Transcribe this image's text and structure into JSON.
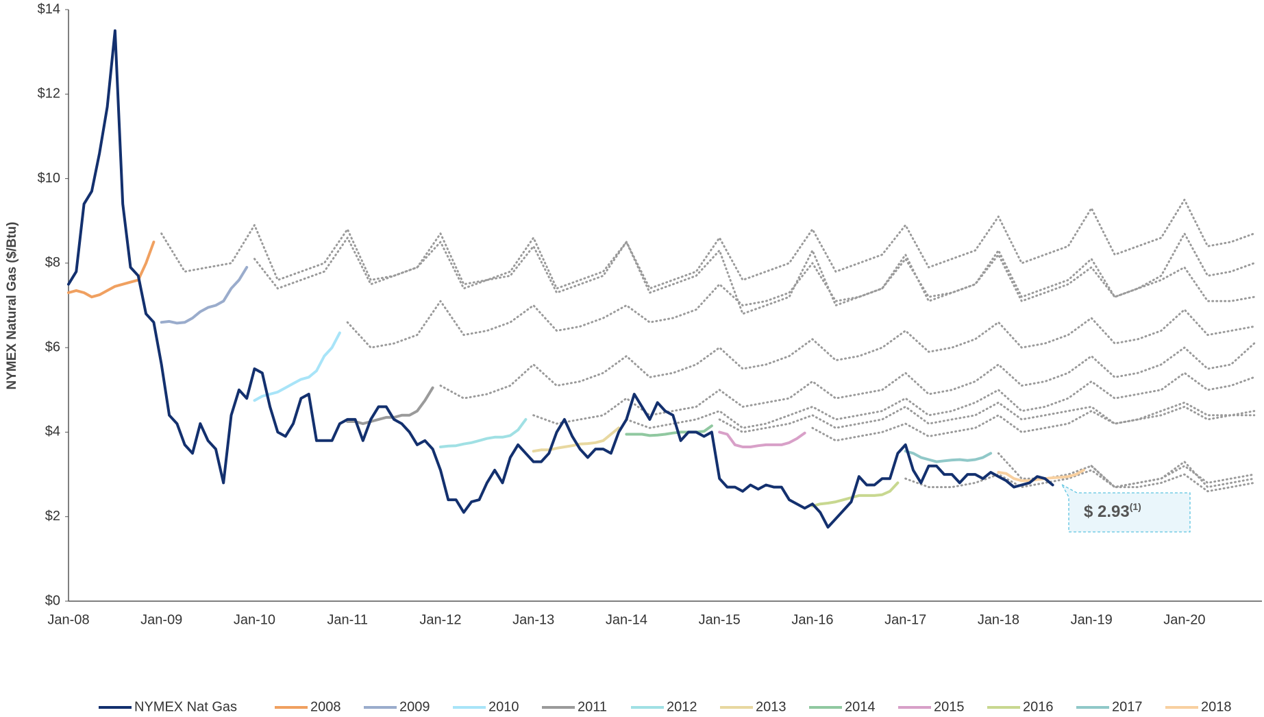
{
  "chart_data": {
    "type": "line",
    "y_label": "NYMEX Natural Gas ($/Btu)",
    "xlim": [
      "Jan-08",
      "Nov-20"
    ],
    "xticks": [
      "Jan-08",
      "Jan-09",
      "Jan-10",
      "Jan-11",
      "Jan-12",
      "Jan-13",
      "Jan-14",
      "Jan-15",
      "Jan-16",
      "Jan-17",
      "Jan-18",
      "Jan-19",
      "Jan-20"
    ],
    "ylim": [
      0,
      14
    ],
    "yticks": [
      {
        "value": 0,
        "label": "$0"
      },
      {
        "value": 2,
        "label": "$2"
      },
      {
        "value": 4,
        "label": "$4"
      },
      {
        "value": 6,
        "label": "$6"
      },
      {
        "value": 8,
        "label": "$8"
      },
      {
        "value": 10,
        "label": "$10"
      },
      {
        "value": 12,
        "label": "$12"
      },
      {
        "value": 14,
        "label": "$14"
      }
    ],
    "forward_color": "#9a9a9a",
    "forward_step_months": 3,
    "annotation": {
      "text": "$ 2.93",
      "note": "(1)"
    },
    "series": [
      {
        "name": "NYMEX Nat Gas",
        "color": "#13306e",
        "start": "Jan-08",
        "values": [
          7.5,
          7.8,
          9.4,
          9.7,
          10.6,
          11.7,
          13.5,
          9.4,
          7.9,
          7.7,
          6.8,
          6.6,
          5.6,
          4.4,
          4.2,
          3.7,
          3.5,
          4.2,
          3.8,
          3.6,
          2.8,
          4.4,
          5.0,
          4.8,
          5.5,
          5.4,
          4.6,
          4.0,
          3.9,
          4.2,
          4.8,
          4.9,
          3.8,
          3.8,
          3.8,
          4.2,
          4.3,
          4.3,
          3.8,
          4.3,
          4.6,
          4.6,
          4.3,
          4.2,
          4.0,
          3.7,
          3.8,
          3.6,
          3.1,
          2.4,
          2.4,
          2.1,
          2.35,
          2.4,
          2.8,
          3.1,
          2.8,
          3.4,
          3.7,
          3.5,
          3.3,
          3.3,
          3.5,
          4.0,
          4.3,
          3.9,
          3.6,
          3.4,
          3.6,
          3.6,
          3.5,
          4.0,
          4.3,
          4.9,
          4.6,
          4.3,
          4.7,
          4.5,
          4.4,
          3.8,
          4.0,
          4.0,
          3.9,
          4.0,
          2.9,
          2.7,
          2.7,
          2.6,
          2.75,
          2.65,
          2.75,
          2.7,
          2.7,
          2.4,
          2.3,
          2.2,
          2.3,
          2.1,
          1.75,
          1.95,
          2.15,
          2.35,
          2.95,
          2.75,
          2.75,
          2.9,
          2.9,
          3.5,
          3.7,
          3.1,
          2.8,
          3.2,
          3.2,
          3.0,
          3.0,
          2.8,
          3.0,
          3.0,
          2.9,
          3.05,
          2.95,
          2.85,
          2.7,
          2.75,
          2.8,
          2.95,
          2.9,
          2.75
        ]
      },
      {
        "name": "2008",
        "color": "#f0a060",
        "start": "Jan-08",
        "values": [
          7.3,
          7.35,
          7.3,
          7.2,
          7.25,
          7.35,
          7.45,
          7.5,
          7.55,
          7.6,
          8.0,
          8.5
        ],
        "forward_start": "Jan-09",
        "forward": [
          8.7,
          7.8,
          7.9,
          8.0,
          8.9,
          7.6,
          7.8,
          8.0,
          8.8,
          7.6,
          7.7,
          7.9,
          8.7,
          7.5,
          7.6,
          7.8,
          8.6,
          7.4,
          7.6,
          7.8,
          8.5,
          7.4,
          7.6,
          7.8,
          8.6,
          7.6,
          7.8,
          8.0,
          8.8,
          7.8,
          8.0,
          8.2,
          8.9,
          7.9,
          8.1,
          8.3,
          9.1,
          8.0,
          8.2,
          8.4,
          9.3,
          8.2,
          8.4,
          8.6,
          9.5,
          8.4,
          8.5,
          8.7
        ]
      },
      {
        "name": "2009",
        "color": "#9aaccc",
        "start": "Jan-09",
        "values": [
          6.6,
          6.62,
          6.58,
          6.6,
          6.7,
          6.85,
          6.95,
          7.0,
          7.1,
          7.4,
          7.6,
          7.9
        ],
        "forward_start": "Jan-10",
        "forward": [
          8.1,
          7.4,
          7.6,
          7.8,
          8.6,
          7.5,
          7.7,
          7.9,
          8.5,
          7.4,
          7.6,
          7.7,
          8.4,
          7.3,
          7.5,
          7.7,
          8.5,
          7.3,
          7.5,
          7.7,
          8.3,
          6.8,
          7.0,
          7.2,
          8.3,
          7.0,
          7.2,
          7.4,
          8.2,
          7.1,
          7.3,
          7.5,
          8.3,
          7.2,
          7.4,
          7.6,
          8.1,
          7.2,
          7.4,
          7.7,
          8.7,
          7.7,
          7.8,
          8.0
        ]
      },
      {
        "name": "2010",
        "color": "#a8e4f8",
        "start": "Jan-10",
        "values": [
          4.75,
          4.85,
          4.9,
          4.95,
          5.05,
          5.15,
          5.25,
          5.3,
          5.45,
          5.8,
          6.0,
          6.35
        ],
        "forward_start": "Jan-11",
        "forward": [
          6.6,
          6.0,
          6.1,
          6.3,
          7.1,
          6.3,
          6.4,
          6.6,
          7.0,
          6.4,
          6.5,
          6.7,
          7.0,
          6.6,
          6.7,
          6.9,
          7.5,
          7.0,
          7.1,
          7.3,
          8.0,
          7.1,
          7.2,
          7.4,
          8.1,
          7.2,
          7.3,
          7.5,
          8.2,
          7.1,
          7.3,
          7.5,
          7.9,
          7.2,
          7.4,
          7.6,
          7.9,
          7.1,
          7.1,
          7.2
        ]
      },
      {
        "name": "2011",
        "color": "#9a9a9a",
        "start": "Jan-11",
        "values": [
          4.25,
          4.25,
          4.2,
          4.25,
          4.3,
          4.35,
          4.35,
          4.4,
          4.4,
          4.5,
          4.75,
          5.05
        ],
        "forward_start": "Jan-12",
        "forward": [
          5.1,
          4.8,
          4.9,
          5.1,
          5.6,
          5.1,
          5.2,
          5.4,
          5.8,
          5.3,
          5.4,
          5.6,
          6.0,
          5.5,
          5.6,
          5.8,
          6.2,
          5.7,
          5.8,
          6.0,
          6.4,
          5.9,
          6.0,
          6.2,
          6.6,
          6.0,
          6.1,
          6.3,
          6.7,
          6.1,
          6.2,
          6.4,
          6.9,
          6.3,
          6.4,
          6.5
        ]
      },
      {
        "name": "2012",
        "color": "#a0e0e4",
        "start": "Jan-12",
        "values": [
          3.65,
          3.67,
          3.68,
          3.72,
          3.75,
          3.8,
          3.85,
          3.88,
          3.88,
          3.92,
          4.05,
          4.3
        ],
        "forward_start": "Jan-13",
        "forward": [
          4.4,
          4.2,
          4.3,
          4.4,
          4.8,
          4.4,
          4.5,
          4.6,
          5.0,
          4.6,
          4.7,
          4.8,
          5.2,
          4.8,
          4.9,
          5.0,
          5.4,
          4.9,
          5.0,
          5.2,
          5.6,
          5.1,
          5.2,
          5.4,
          5.8,
          5.3,
          5.4,
          5.6,
          6.0,
          5.5,
          5.6,
          6.1
        ]
      },
      {
        "name": "2013",
        "color": "#e8d8a0",
        "start": "Jan-13",
        "values": [
          3.55,
          3.58,
          3.58,
          3.62,
          3.65,
          3.68,
          3.72,
          3.73,
          3.75,
          3.8,
          3.95,
          4.1
        ],
        "forward_start": "Jan-14",
        "forward": [
          4.3,
          4.1,
          4.2,
          4.3,
          4.5,
          4.1,
          4.2,
          4.4,
          4.6,
          4.3,
          4.4,
          4.5,
          4.8,
          4.4,
          4.5,
          4.7,
          5.0,
          4.5,
          4.6,
          4.8,
          5.2,
          4.8,
          4.9,
          5.0,
          5.4,
          5.0,
          5.1,
          5.3
        ]
      },
      {
        "name": "2014",
        "color": "#90c8a0",
        "start": "Jan-14",
        "values": [
          3.95,
          3.95,
          3.95,
          3.92,
          3.93,
          3.95,
          3.98,
          4.0,
          4.0,
          4.0,
          4.02,
          4.15
        ],
        "forward_start": "Jan-15",
        "forward": [
          4.3,
          4.0,
          4.1,
          4.2,
          4.4,
          4.1,
          4.2,
          4.3,
          4.6,
          4.2,
          4.3,
          4.4,
          4.7,
          4.3,
          4.4,
          4.5,
          4.6,
          4.2,
          4.3,
          4.5,
          4.7,
          4.4,
          4.4,
          4.5
        ]
      },
      {
        "name": "2015",
        "color": "#d8a0c8",
        "start": "Jan-15",
        "values": [
          4.0,
          3.95,
          3.7,
          3.65,
          3.65,
          3.68,
          3.7,
          3.7,
          3.7,
          3.75,
          3.85,
          3.98
        ],
        "forward_start": "Jan-16",
        "forward": [
          4.1,
          3.8,
          3.9,
          4.0,
          4.2,
          3.9,
          4.0,
          4.1,
          4.4,
          4.0,
          4.1,
          4.2,
          4.5,
          4.2,
          4.3,
          4.4,
          4.6,
          4.3,
          4.4,
          4.4
        ]
      },
      {
        "name": "2016",
        "color": "#c8d890",
        "start": "Jan-16",
        "values": [
          2.25,
          2.3,
          2.32,
          2.35,
          2.4,
          2.45,
          2.5,
          2.5,
          2.5,
          2.52,
          2.6,
          2.8
        ],
        "forward_start": "Jan-17",
        "forward": [
          2.9,
          2.7,
          2.7,
          2.8,
          3.0,
          2.7,
          2.8,
          2.9,
          3.1,
          2.7,
          2.8,
          2.9,
          3.2,
          2.8,
          2.9,
          3.0
        ]
      },
      {
        "name": "2017",
        "color": "#90c8c8",
        "start": "Jan-17",
        "values": [
          3.55,
          3.5,
          3.4,
          3.35,
          3.3,
          3.32,
          3.34,
          3.35,
          3.33,
          3.35,
          3.4,
          3.5
        ],
        "forward_start": "Jan-18",
        "forward": [
          3.5,
          2.9,
          2.9,
          3.0,
          3.2,
          2.7,
          2.8,
          2.9,
          3.3,
          2.7,
          2.8,
          2.9
        ]
      },
      {
        "name": "2018",
        "color": "#f8d0a0",
        "start": "Jan-18",
        "values": [
          3.05,
          3.02,
          2.9,
          2.85,
          2.85,
          2.88,
          2.9,
          2.92,
          2.93,
          2.95,
          3.0,
          3.1
        ],
        "forward_start": "Jan-19",
        "forward": [
          3.2,
          2.7,
          2.7,
          2.8,
          3.0,
          2.6,
          2.7,
          2.8
        ]
      }
    ]
  }
}
